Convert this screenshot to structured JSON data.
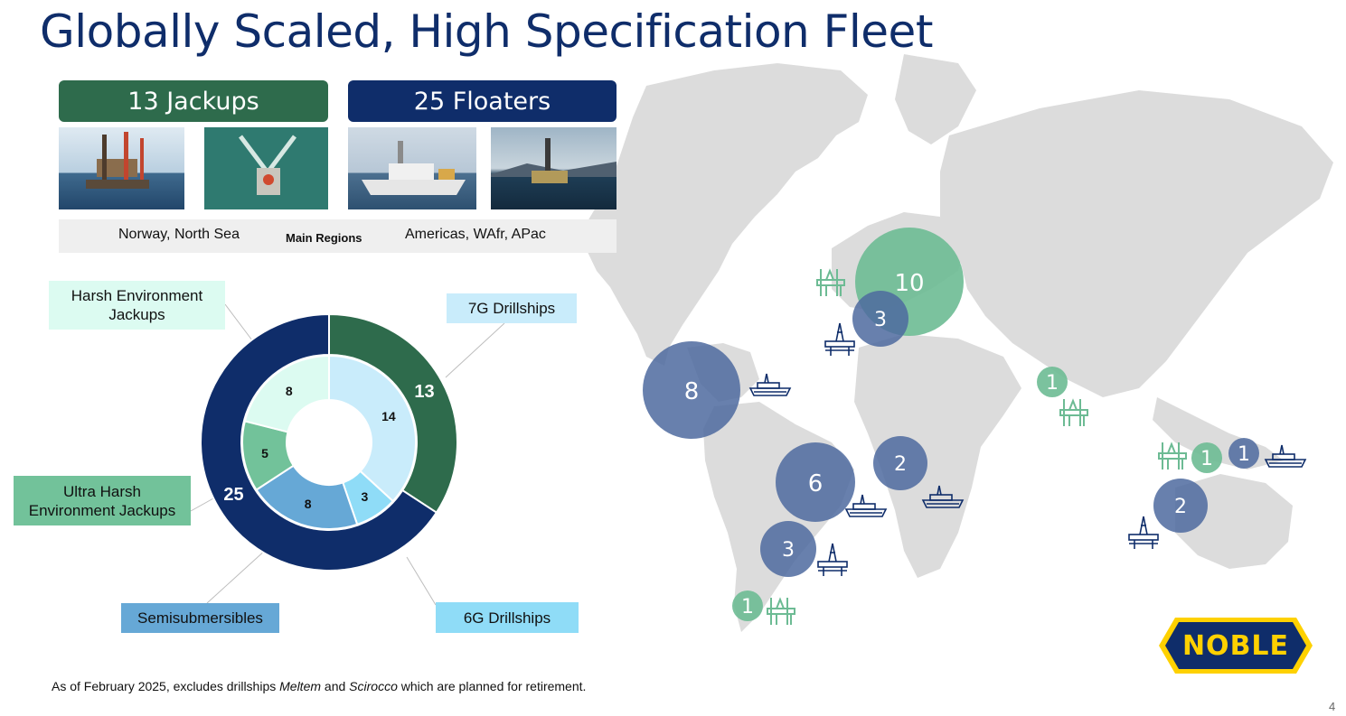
{
  "title": "Globally Scaled, High Specification Fleet",
  "jackups_header": "13 Jackups",
  "floaters_header": "25 Floaters",
  "regions": {
    "jackups": "Norway, North Sea",
    "label": "Main Regions",
    "floaters": "Americas, WAfr, APac"
  },
  "labels": {
    "harsh": "Harsh Environment Jackups",
    "ultra_harsh": "Ultra Harsh Environment Jackups",
    "semisub": "Semisubmersibles",
    "drillships_7g": "7G Drillships",
    "drillships_6g": "6G Drillships"
  },
  "chart_data": {
    "type": "pie",
    "outer": [
      {
        "name": "Jackups",
        "value": 13,
        "label": "13",
        "color": "#2e6b4c"
      },
      {
        "name": "Floaters",
        "value": 25,
        "label": "25",
        "color": "#0f2d6a"
      }
    ],
    "inner": [
      {
        "name": "7G Drillships",
        "value": 14,
        "label": "14",
        "color": "#c9ecfb"
      },
      {
        "name": "6G Drillships",
        "value": 3,
        "label": "3",
        "color": "#8fdcf7"
      },
      {
        "name": "Semisubmersibles",
        "value": 8,
        "label": "8",
        "color": "#66a8d6"
      },
      {
        "name": "Ultra Harsh Environment Jackups",
        "value": 5,
        "label": "5",
        "color": "#72c29a"
      },
      {
        "name": "Harsh Environment Jackups",
        "value": 8,
        "label": "8",
        "color": "#dcfbf1"
      }
    ]
  },
  "map_bubbles": [
    {
      "name": "north-sea-jackups",
      "value": "10",
      "type": "jackup"
    },
    {
      "name": "north-sea-floaters",
      "value": "3",
      "type": "floater"
    },
    {
      "name": "gulf-of-mexico",
      "value": "8",
      "type": "floater"
    },
    {
      "name": "middle-east",
      "value": "1",
      "type": "jackup"
    },
    {
      "name": "brazil",
      "value": "6",
      "type": "floater"
    },
    {
      "name": "west-africa",
      "value": "2",
      "type": "floater"
    },
    {
      "name": "south-america-south",
      "value": "3",
      "type": "floater"
    },
    {
      "name": "argentina",
      "value": "1",
      "type": "jackup"
    },
    {
      "name": "asia-jackup",
      "value": "1",
      "type": "jackup"
    },
    {
      "name": "asia-floater",
      "value": "1",
      "type": "floater"
    },
    {
      "name": "australia",
      "value": "2",
      "type": "floater"
    }
  ],
  "footnote": {
    "pre": "As of February 2025, excludes drillships ",
    "ship1": "Meltem",
    "mid": " and ",
    "ship2": "Scirocco",
    "post": " which are planned for retirement."
  },
  "logo": "NOBLE",
  "page_number": "4",
  "colors": {
    "jackup": "#6dbb94",
    "floater": "#4e6a9f",
    "navy": "#0f2d6a",
    "green": "#2e6b4c"
  }
}
